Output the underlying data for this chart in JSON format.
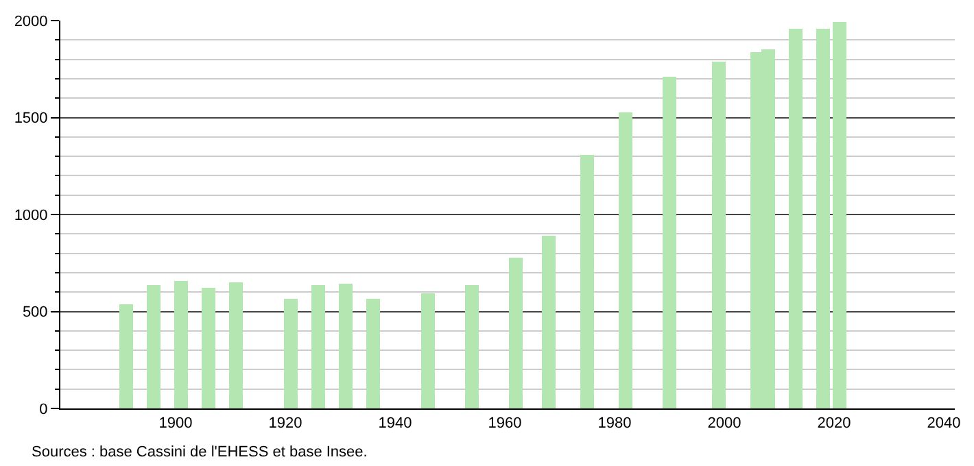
{
  "chart_data": {
    "type": "bar",
    "x": [
      1891,
      1896,
      1901,
      1906,
      1911,
      1921,
      1926,
      1931,
      1936,
      1946,
      1954,
      1962,
      1968,
      1975,
      1982,
      1990,
      1999,
      2006,
      2008,
      2013,
      2018,
      2021
    ],
    "values": [
      540,
      635,
      655,
      620,
      650,
      565,
      635,
      640,
      565,
      595,
      635,
      775,
      890,
      1310,
      1525,
      1710,
      1785,
      1840,
      1850,
      1955,
      1955,
      1995
    ],
    "color": "#b3e6b0",
    "xlim": [
      1879,
      2042
    ],
    "xticks": [
      1900,
      1920,
      1940,
      1960,
      1980,
      2000,
      2020,
      2040
    ],
    "ylim": [
      0,
      2000
    ],
    "yticks": [
      0,
      {
        "value": 100,
        "label": null
      },
      {
        "value": 200,
        "label": null
      },
      {
        "value": 300,
        "label": null
      },
      {
        "value": 400,
        "label": null
      },
      500,
      {
        "value": 600,
        "label": null
      },
      {
        "value": 700,
        "label": null
      },
      {
        "value": 800,
        "label": null
      },
      {
        "value": 900,
        "label": null
      },
      1000,
      {
        "value": 1100,
        "label": null
      },
      {
        "value": 1200,
        "label": null
      },
      {
        "value": 1300,
        "label": null
      },
      {
        "value": 1400,
        "label": null
      },
      1500,
      {
        "value": 1600,
        "label": null
      },
      {
        "value": 1700,
        "label": null
      },
      {
        "value": 1800,
        "label": null
      },
      {
        "value": 1900,
        "label": null
      },
      2000
    ],
    "grid": "y",
    "annotations": [
      "Sources : base Cassini de l'EHESS et base Insee."
    ]
  }
}
